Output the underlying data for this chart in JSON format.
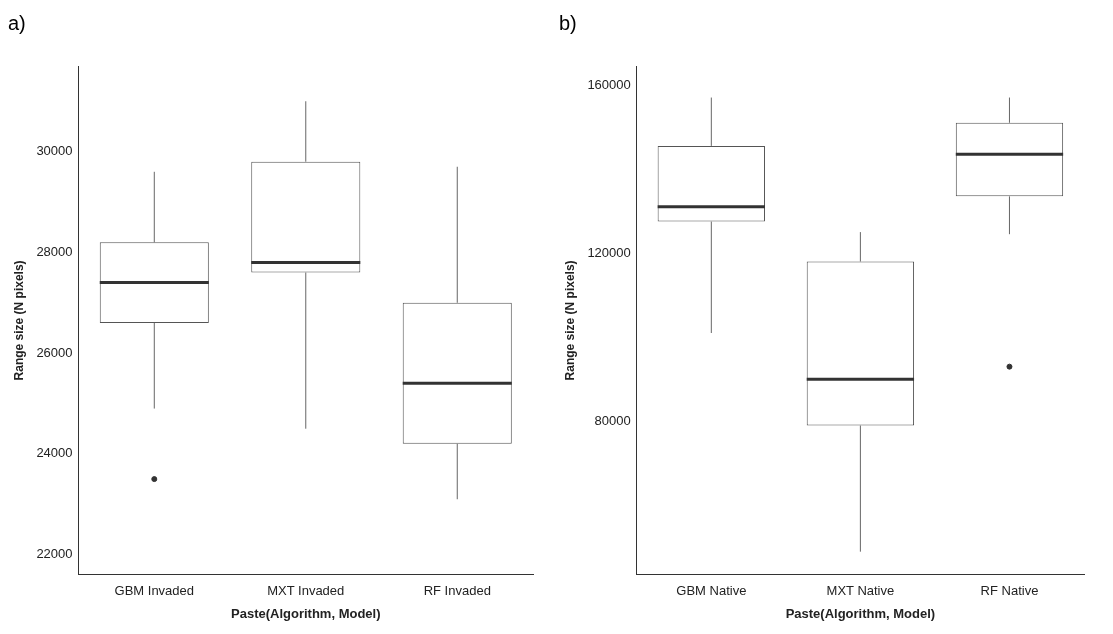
{
  "chart_data": [
    {
      "type": "box",
      "title": "a)",
      "xlabel": "Paste(Algorithm, Model)",
      "ylabel": "Range size (N pixels)",
      "categories": [
        "GBM Invaded",
        "MXT Invaded",
        "RF Invaded"
      ],
      "boxes": [
        {
          "low": 24900,
          "q1": 26600,
          "median": 27400,
          "q3": 28200,
          "high": 29600,
          "outliers": [
            23500
          ]
        },
        {
          "low": 24500,
          "q1": 27600,
          "median": 27800,
          "q3": 29800,
          "high": 31000
        },
        {
          "low": 23100,
          "q1": 24200,
          "median": 25400,
          "q3": 27000,
          "high": 29700
        }
      ],
      "ylim": [
        21600,
        31700
      ],
      "yticks": [
        22000,
        24000,
        26000,
        28000,
        30000
      ],
      "grid": false,
      "legend": false
    },
    {
      "type": "box",
      "title": "b)",
      "xlabel": "Paste(Algorithm, Model)",
      "ylabel": "Range size (N pixels)",
      "categories": [
        "GBM Native",
        "MXT Native",
        "RF Native"
      ],
      "boxes": [
        {
          "low": 101000,
          "q1": 127500,
          "median": 131000,
          "q3": 145500,
          "high": 157000
        },
        {
          "low": 49000,
          "q1": 79000,
          "median": 90000,
          "q3": 118000,
          "high": 125000
        },
        {
          "low": 124500,
          "q1": 133500,
          "median": 143500,
          "q3": 151000,
          "high": 157000,
          "outliers": [
            93000
          ]
        }
      ],
      "ylim": [
        43500,
        164500
      ],
      "yticks": [
        80000,
        120000,
        160000
      ],
      "grid": false,
      "legend": false
    }
  ]
}
